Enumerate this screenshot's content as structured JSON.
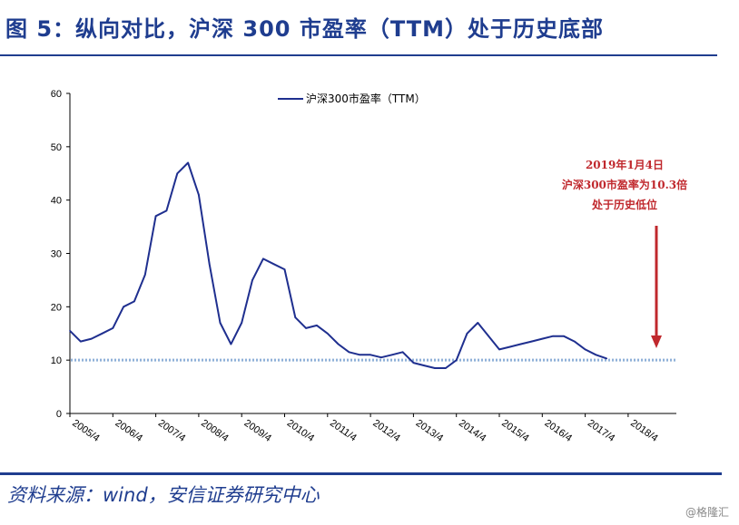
{
  "header": {
    "title": "图 5：纵向对比，沪深 300 市盈率（TTM）处于历史底部"
  },
  "footer": {
    "source": "资料来源：wind，安信证券研究中心",
    "watermark": "@格隆汇"
  },
  "colors": {
    "accent": "#1f3d8f",
    "series": "#1f2f8f",
    "reference_line": "#8fb0d8",
    "annotation": "#c0282d"
  },
  "chart_data": {
    "type": "line",
    "title": "",
    "xlabel": "",
    "ylabel": "",
    "ylim": [
      0,
      60
    ],
    "yticks": [
      "0",
      "10",
      "20",
      "30",
      "40",
      "50",
      "60"
    ],
    "xticks": [
      "2005/4",
      "2006/4",
      "2007/4",
      "2008/4",
      "2009/4",
      "2010/4",
      "2011/4",
      "2012/4",
      "2013/4",
      "2014/4",
      "2015/4",
      "2016/4",
      "2017/4",
      "2018/4"
    ],
    "grid": false,
    "legend": "top",
    "series": [
      {
        "name": "沪深300市盈率（TTM）",
        "x_start": "2005/4",
        "x_end": "2019/1",
        "values_by_quarter": [
          15.5,
          13.5,
          14,
          15,
          16,
          20,
          21,
          26,
          37,
          38,
          45,
          47,
          41,
          28,
          17,
          13,
          17,
          25,
          29,
          28,
          27,
          18,
          16,
          16.5,
          15,
          13,
          11.5,
          11,
          11,
          10.5,
          11,
          11.5,
          9.5,
          9,
          8.5,
          8.5,
          10,
          15,
          17,
          14.5,
          12,
          12.5,
          13,
          13.5,
          14,
          14.5,
          14.5,
          13.5,
          12,
          11,
          10.3
        ]
      }
    ],
    "reference_line": {
      "y": 10,
      "style": "dotted"
    },
    "annotation": {
      "lines": [
        "2019年1月4日",
        "沪深300市盈率为10.3倍",
        "处于历史低位"
      ],
      "arrow": "down"
    }
  }
}
